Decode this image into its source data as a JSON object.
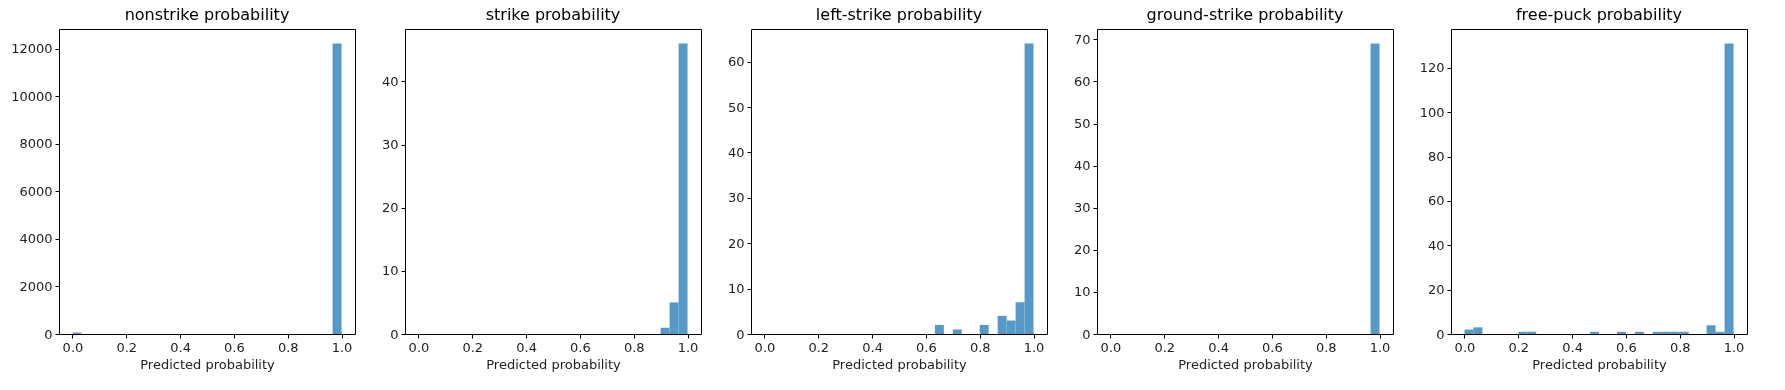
{
  "chart_data": [
    {
      "type": "histogram",
      "title": "nonstrike probability",
      "xlabel": "Predicted probability",
      "color": "#5799c6",
      "xlim": [
        -0.05,
        1.05
      ],
      "xticks": [
        {
          "value": 0,
          "label": "0.0"
        },
        {
          "value": 0.2,
          "label": "0.2"
        },
        {
          "value": 0.4,
          "label": "0.4"
        },
        {
          "value": 0.6,
          "label": "0.6"
        },
        {
          "value": 0.8,
          "label": "0.8"
        },
        {
          "value": 1,
          "label": "1.0"
        }
      ],
      "ylim": [
        0,
        12840
      ],
      "yticks": [
        0,
        2000,
        4000,
        6000,
        8000,
        10000,
        12000
      ],
      "grid": false,
      "bins": [
        0,
        0.0333,
        0.0667,
        0.1,
        0.1333,
        0.1667,
        0.2,
        0.2333,
        0.2667,
        0.3,
        0.3333,
        0.3667,
        0.4,
        0.4333,
        0.4667,
        0.5,
        0.5333,
        0.5667,
        0.6,
        0.6333,
        0.6667,
        0.7,
        0.7333,
        0.7667,
        0.8,
        0.8333,
        0.8667,
        0.9,
        0.9333,
        0.9667,
        1
      ],
      "values": [
        60,
        0,
        0,
        0,
        0,
        0,
        0,
        0,
        0,
        0,
        0,
        0,
        0,
        0,
        0,
        0,
        0,
        0,
        0,
        0,
        0,
        0,
        0,
        0,
        0,
        0,
        0,
        0,
        0,
        12230
      ]
    },
    {
      "type": "histogram",
      "title": "strike probability",
      "xlabel": "Predicted probability",
      "color": "#5799c6",
      "xlim": [
        -0.05,
        1.05
      ],
      "xticks": [
        {
          "value": 0,
          "label": "0.0"
        },
        {
          "value": 0.2,
          "label": "0.2"
        },
        {
          "value": 0.4,
          "label": "0.4"
        },
        {
          "value": 0.6,
          "label": "0.6"
        },
        {
          "value": 0.8,
          "label": "0.8"
        },
        {
          "value": 1,
          "label": "1.0"
        }
      ],
      "ylim": [
        0,
        48.3
      ],
      "yticks": [
        0,
        10,
        20,
        30,
        40
      ],
      "grid": false,
      "bins": [
        0,
        0.0333,
        0.0667,
        0.1,
        0.1333,
        0.1667,
        0.2,
        0.2333,
        0.2667,
        0.3,
        0.3333,
        0.3667,
        0.4,
        0.4333,
        0.4667,
        0.5,
        0.5333,
        0.5667,
        0.6,
        0.6333,
        0.6667,
        0.7,
        0.7333,
        0.7667,
        0.8,
        0.8333,
        0.8667,
        0.9,
        0.9333,
        0.9667,
        1
      ],
      "values": [
        0,
        0,
        0,
        0,
        0,
        0,
        0,
        0,
        0,
        0,
        0,
        0,
        0,
        0,
        0,
        0,
        0,
        0,
        0,
        0,
        0,
        0,
        0,
        0,
        0,
        0,
        0,
        1,
        5,
        46
      ]
    },
    {
      "type": "histogram",
      "title": "left-strike probability",
      "xlabel": "Predicted probability",
      "color": "#5799c6",
      "xlim": [
        -0.05,
        1.05
      ],
      "xticks": [
        {
          "value": 0,
          "label": "0.0"
        },
        {
          "value": 0.2,
          "label": "0.2"
        },
        {
          "value": 0.4,
          "label": "0.4"
        },
        {
          "value": 0.6,
          "label": "0.6"
        },
        {
          "value": 0.8,
          "label": "0.8"
        },
        {
          "value": 1,
          "label": "1.0"
        }
      ],
      "ylim": [
        0,
        67.2
      ],
      "yticks": [
        0,
        10,
        20,
        30,
        40,
        50,
        60
      ],
      "grid": false,
      "bins": [
        0,
        0.0333,
        0.0667,
        0.1,
        0.1333,
        0.1667,
        0.2,
        0.2333,
        0.2667,
        0.3,
        0.3333,
        0.3667,
        0.4,
        0.4333,
        0.4667,
        0.5,
        0.5333,
        0.5667,
        0.6,
        0.6333,
        0.6667,
        0.7,
        0.7333,
        0.7667,
        0.8,
        0.8333,
        0.8667,
        0.9,
        0.9333,
        0.9667,
        1
      ],
      "values": [
        0,
        0,
        0,
        0,
        0,
        0,
        0,
        0,
        0,
        0,
        0,
        0,
        0,
        0,
        0,
        0,
        0,
        0,
        0,
        2,
        0,
        1,
        0,
        0,
        2,
        0,
        4,
        3,
        7,
        64
      ]
    },
    {
      "type": "histogram",
      "title": "ground-strike probability",
      "xlabel": "Predicted probability",
      "color": "#5799c6",
      "xlim": [
        -0.05,
        1.05
      ],
      "xticks": [
        {
          "value": 0,
          "label": "0.0"
        },
        {
          "value": 0.2,
          "label": "0.2"
        },
        {
          "value": 0.4,
          "label": "0.4"
        },
        {
          "value": 0.6,
          "label": "0.6"
        },
        {
          "value": 0.8,
          "label": "0.8"
        },
        {
          "value": 1,
          "label": "1.0"
        }
      ],
      "ylim": [
        0,
        72.45
      ],
      "yticks": [
        0,
        10,
        20,
        30,
        40,
        50,
        60,
        70
      ],
      "grid": false,
      "bins": [
        0,
        0.0333,
        0.0667,
        0.1,
        0.1333,
        0.1667,
        0.2,
        0.2333,
        0.2667,
        0.3,
        0.3333,
        0.3667,
        0.4,
        0.4333,
        0.4667,
        0.5,
        0.5333,
        0.5667,
        0.6,
        0.6333,
        0.6667,
        0.7,
        0.7333,
        0.7667,
        0.8,
        0.8333,
        0.8667,
        0.9,
        0.9333,
        0.9667,
        1
      ],
      "values": [
        0,
        0,
        0,
        0,
        0,
        0,
        0,
        0,
        0,
        0,
        0,
        0,
        0,
        0,
        0,
        0,
        0,
        0,
        0,
        0,
        0,
        0,
        0,
        0,
        0,
        0,
        0,
        0,
        0,
        69
      ]
    },
    {
      "type": "histogram",
      "title": "free-puck probability",
      "xlabel": "Predicted probability",
      "color": "#5799c6",
      "xlim": [
        -0.05,
        1.05
      ],
      "xticks": [
        {
          "value": 0,
          "label": "0.0"
        },
        {
          "value": 0.2,
          "label": "0.2"
        },
        {
          "value": 0.4,
          "label": "0.4"
        },
        {
          "value": 0.6,
          "label": "0.6"
        },
        {
          "value": 0.8,
          "label": "0.8"
        },
        {
          "value": 1,
          "label": "1.0"
        }
      ],
      "ylim": [
        0,
        137.55
      ],
      "yticks": [
        0,
        20,
        40,
        60,
        80,
        100,
        120
      ],
      "grid": false,
      "bins": [
        0,
        0.0333,
        0.0667,
        0.1,
        0.1333,
        0.1667,
        0.2,
        0.2333,
        0.2667,
        0.3,
        0.3333,
        0.3667,
        0.4,
        0.4333,
        0.4667,
        0.5,
        0.5333,
        0.5667,
        0.6,
        0.6333,
        0.6667,
        0.7,
        0.7333,
        0.7667,
        0.8,
        0.8333,
        0.8667,
        0.9,
        0.9333,
        0.9667,
        1
      ],
      "values": [
        2,
        3,
        0,
        0,
        0,
        0,
        1,
        1,
        0,
        0,
        0,
        0,
        0,
        0,
        1,
        0,
        0,
        1,
        0,
        1,
        0,
        1,
        1,
        1,
        1,
        0,
        0,
        4,
        1,
        131
      ]
    }
  ]
}
